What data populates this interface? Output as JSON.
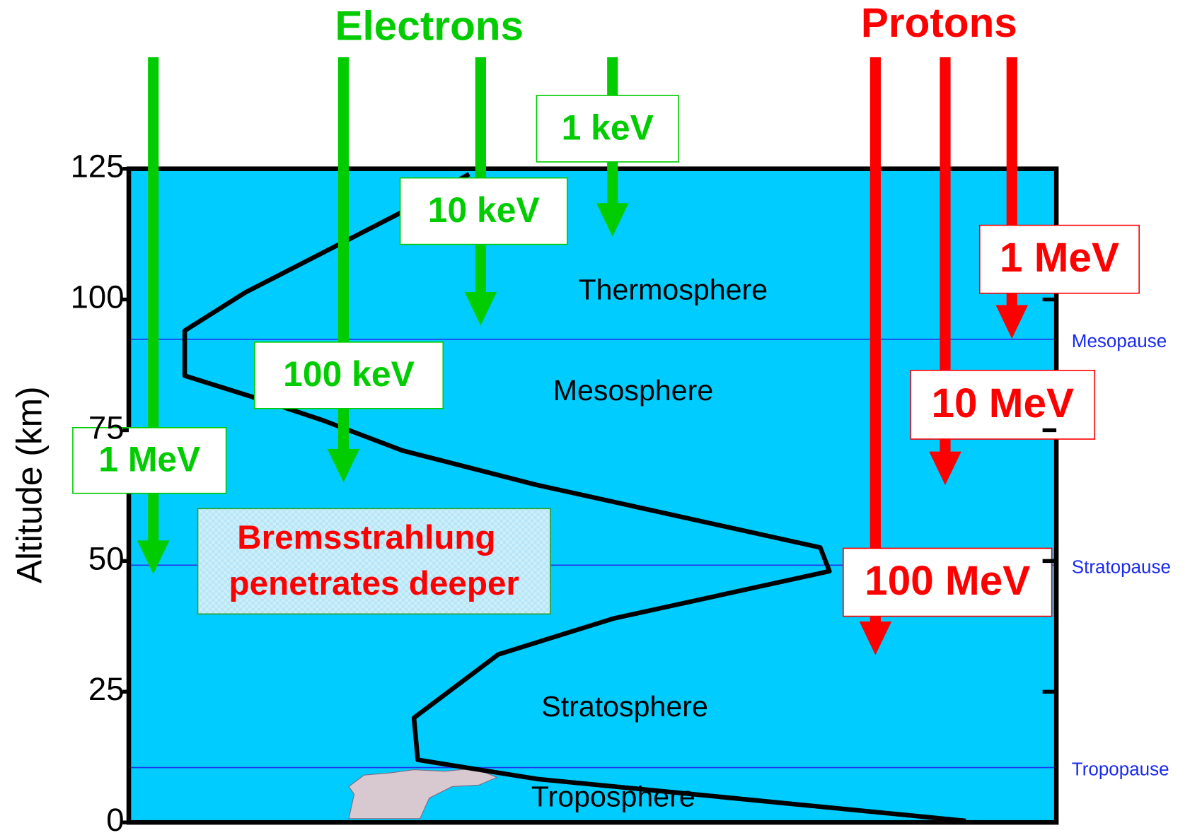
{
  "title_electrons": "Electrons",
  "title_protons": "Protons",
  "axis": {
    "label": "Altitude (km)",
    "ylim": [
      0,
      125
    ],
    "yticks": [
      0,
      25,
      50,
      75,
      100,
      125
    ]
  },
  "electrons": [
    {
      "label": "1 keV",
      "stop_altitude": 112
    },
    {
      "label": "10 keV",
      "stop_altitude": 95
    },
    {
      "label": "100 keV",
      "stop_altitude": 65
    },
    {
      "label": "1 MeV",
      "stop_altitude": 47.5
    }
  ],
  "protons": [
    {
      "label": "1 MeV",
      "stop_altitude": 92.5
    },
    {
      "label": "10 MeV",
      "stop_altitude": 64.5
    },
    {
      "label": "100 MeV",
      "stop_altitude": 32
    }
  ],
  "boundaries": [
    {
      "label": "Mesopause",
      "altitude": 92.4
    },
    {
      "label": "Stratopause",
      "altitude": 49.2
    },
    {
      "label": "Tropopause",
      "altitude": 10.5
    }
  ],
  "layers": [
    "Thermosphere",
    "Mesosphere",
    "Stratosphere",
    "Troposphere"
  ],
  "note": [
    "Bremsstrahlung",
    "penetrates deeper"
  ]
}
